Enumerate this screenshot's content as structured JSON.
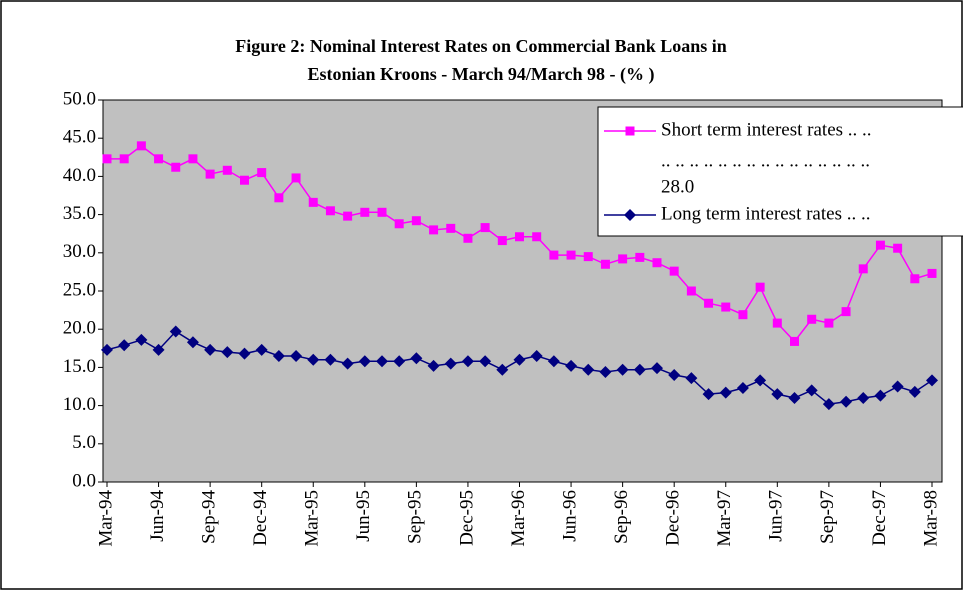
{
  "chart_data": {
    "type": "line",
    "title": [
      "Figure 2: Nominal Interest Rates on Commercial Bank Loans in",
      "Estonian Kroons - March 94/March 98 - (% )"
    ],
    "categories": [
      "Mar-94",
      null,
      null,
      "Jun-94",
      null,
      null,
      "Sep-94",
      null,
      null,
      "Dec-94",
      null,
      null,
      "Mar-95",
      null,
      null,
      "Jun-95",
      null,
      null,
      "Sep-95",
      null,
      null,
      "Dec-95",
      null,
      null,
      "Mar-96",
      null,
      null,
      "Jun-96",
      null,
      null,
      "Sep-96",
      null,
      null,
      "Dec-96",
      null,
      null,
      "Mar-97",
      null,
      null,
      "Jun-97",
      null,
      null,
      "Sep-97",
      null,
      null,
      "Dec-97",
      null,
      null,
      "Mar-98"
    ],
    "series": [
      {
        "name": "Short term interest rates .. ..",
        "color": "#ff00ff",
        "marker": "square",
        "values": [
          42.3,
          42.3,
          44.0,
          42.3,
          41.2,
          42.3,
          40.3,
          40.8,
          39.5,
          40.5,
          37.2,
          39.8,
          36.6,
          35.5,
          34.8,
          35.3,
          35.3,
          33.8,
          34.2,
          33.0,
          33.2,
          31.9,
          33.3,
          31.6,
          32.1,
          32.1,
          29.7,
          29.7,
          29.5,
          28.5,
          29.2,
          29.4,
          28.7,
          27.6,
          25.0,
          23.4,
          22.9,
          21.9,
          25.5,
          20.8,
          18.4,
          21.3,
          20.8,
          22.3,
          27.9,
          31.0,
          30.6,
          26.6,
          27.3
        ]
      },
      {
        "name": "Long term interest rates .. ..",
        "color": "#000080",
        "marker": "diamond",
        "values": [
          17.3,
          17.9,
          18.6,
          17.3,
          19.7,
          18.3,
          17.3,
          17.0,
          16.8,
          17.3,
          16.5,
          16.5,
          16.0,
          16.0,
          15.5,
          15.8,
          15.8,
          15.8,
          16.2,
          15.2,
          15.5,
          15.8,
          15.8,
          14.7,
          16.0,
          16.5,
          15.8,
          15.2,
          14.7,
          14.4,
          14.7,
          14.7,
          14.9,
          14.0,
          13.6,
          11.5,
          11.7,
          12.3,
          13.3,
          11.5,
          11.0,
          12.0,
          10.2,
          10.5,
          11.0,
          11.3,
          12.5,
          11.8,
          13.3
        ]
      }
    ],
    "legend_extra": [
      ".. .. .. .. .. .. .. .. .. .. .. .. .. .. ..",
      "28.0"
    ],
    "ylim": [
      0,
      50
    ],
    "yticks": [
      {
        "value": 0,
        "label": "0.0"
      },
      {
        "value": 5,
        "label": "5.0"
      },
      {
        "value": 10,
        "label": "10.0"
      },
      {
        "value": 15,
        "label": "15.0"
      },
      {
        "value": 20,
        "label": "20.0"
      },
      {
        "value": 25,
        "label": "25.0"
      },
      {
        "value": 30,
        "label": "30.0"
      },
      {
        "value": 35,
        "label": "35.0"
      },
      {
        "value": 40,
        "label": "40.0"
      },
      {
        "value": 45,
        "label": "45.0"
      },
      {
        "value": 50,
        "label": "50.0"
      }
    ],
    "plot_background": "#c0c0c0",
    "grid": false,
    "legend": "upper right"
  }
}
